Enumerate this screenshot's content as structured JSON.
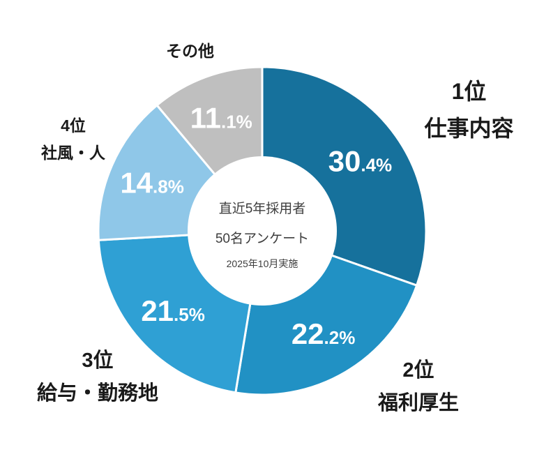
{
  "chart_data": {
    "type": "pie",
    "variant": "donut",
    "unit": "%",
    "direction": "clockwise",
    "start_angle_deg": 0,
    "slices": [
      {
        "rank": "1位",
        "label": "仕事内容",
        "value": 30.4,
        "color": "#16719C"
      },
      {
        "rank": "2位",
        "label": "福利厚生",
        "value": 22.2,
        "color": "#2191C4"
      },
      {
        "rank": "3位",
        "label": "給与・勤務地",
        "value": 21.5,
        "color": "#2FA0D4"
      },
      {
        "rank": "4位",
        "label": "社風・人",
        "value": 14.8,
        "color": "#8FC7E8"
      },
      {
        "rank": "",
        "label": "その他",
        "value": 11.1,
        "color": "#BFBFBF"
      }
    ],
    "center_text": {
      "line1": "直近5年採用者",
      "line2": "50名アンケート",
      "line3": "2025年10月実施"
    }
  }
}
